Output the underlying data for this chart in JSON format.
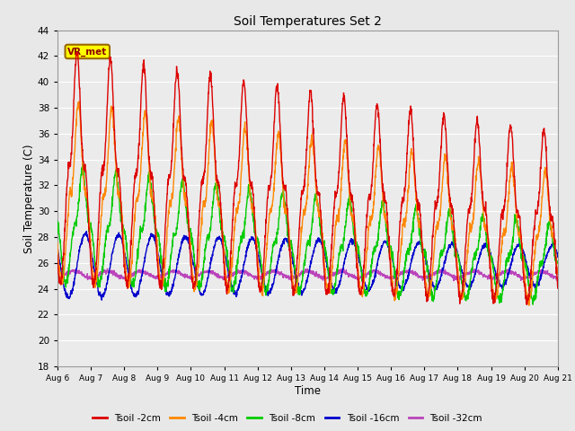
{
  "title": "Soil Temperatures Set 2",
  "xlabel": "Time",
  "ylabel": "Soil Temperature (C)",
  "ylim": [
    18,
    44
  ],
  "yticks": [
    18,
    20,
    22,
    24,
    26,
    28,
    30,
    32,
    34,
    36,
    38,
    40,
    42,
    44
  ],
  "x_tick_labels": [
    "Aug 6",
    "Aug 7",
    "Aug 8",
    "Aug 9",
    "Aug 10",
    "Aug 11",
    "Aug 12",
    "Aug 13",
    "Aug 14",
    "Aug 15",
    "Aug 16",
    "Aug 17",
    "Aug 18",
    "Aug 19",
    "Aug 20",
    "Aug 21"
  ],
  "bg_color": "#e8e8e8",
  "plot_bg_color": "#ebebeb",
  "grid_color": "#ffffff",
  "colors": {
    "Tsoil -2cm": "#dd0000",
    "Tsoil -4cm": "#ff8800",
    "Tsoil -8cm": "#00cc00",
    "Tsoil -16cm": "#0000cc",
    "Tsoil -32cm": "#bb44bb"
  },
  "watermark_text": "VR_met",
  "watermark_bg": "#ffff00",
  "watermark_border": "#996600"
}
